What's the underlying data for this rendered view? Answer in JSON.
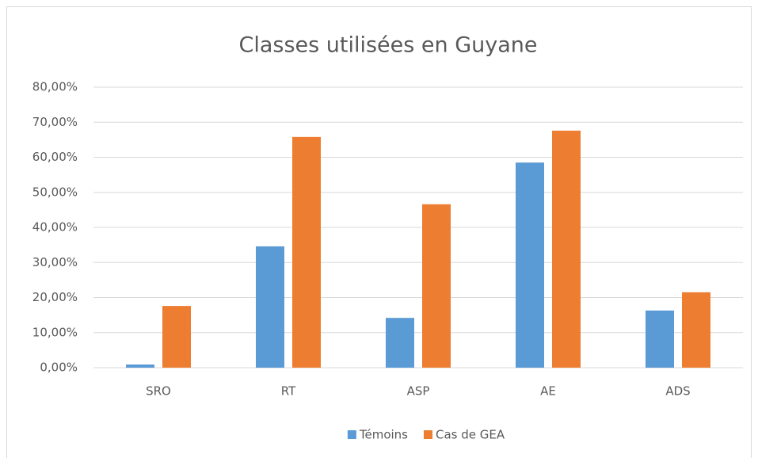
{
  "chart_data": {
    "type": "bar",
    "title": "Classes utilisées en Guyane",
    "categories": [
      "SRO",
      "RT",
      "ASP",
      "AE",
      "ADS"
    ],
    "series": [
      {
        "name": "Témoins",
        "color": "#5b9bd5",
        "values": [
          0.9,
          34.6,
          14.2,
          58.5,
          16.3
        ]
      },
      {
        "name": "Cas de GEA",
        "color": "#ed7d31",
        "values": [
          17.6,
          65.8,
          46.6,
          67.6,
          21.5
        ]
      }
    ],
    "ylim": [
      0,
      80
    ],
    "yticks": [
      {
        "value": 0,
        "label": "0,00%"
      },
      {
        "value": 10,
        "label": "10,00%"
      },
      {
        "value": 20,
        "label": "20,00%"
      },
      {
        "value": 30,
        "label": "30,00%"
      },
      {
        "value": 40,
        "label": "40,00%"
      },
      {
        "value": 50,
        "label": "50,00%"
      },
      {
        "value": 60,
        "label": "60,00%"
      },
      {
        "value": 70,
        "label": "70,00%"
      },
      {
        "value": 80,
        "label": "80,00%"
      }
    ],
    "grid": true,
    "legend": "bottom"
  }
}
